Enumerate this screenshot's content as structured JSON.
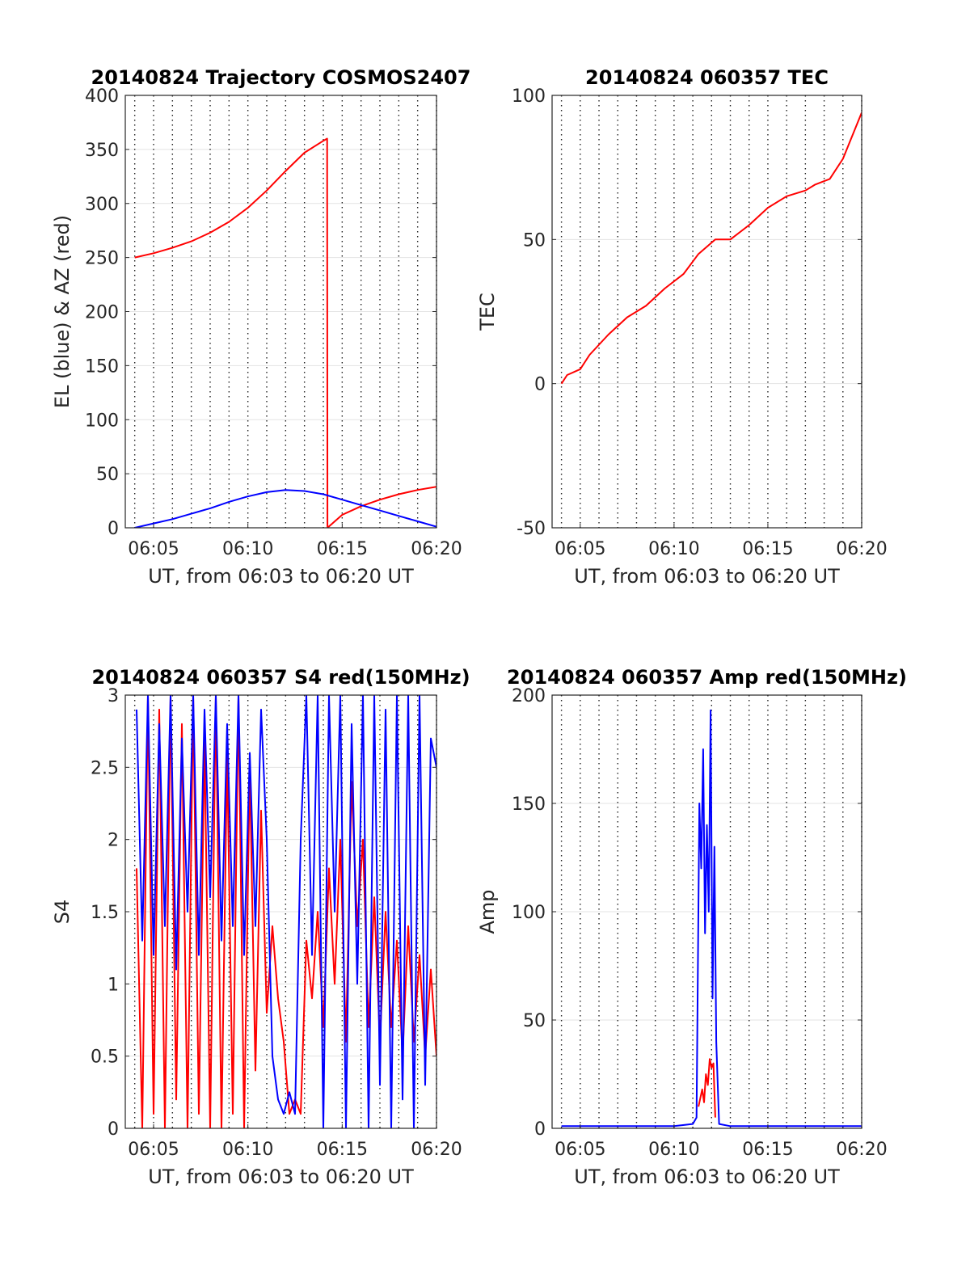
{
  "chart_data": [
    {
      "type": "line",
      "title": "20140824 Trajectory COSMOS2407",
      "xlabel": "UT, from 06:03 to 06:20 UT",
      "ylabel": "EL (blue) & AZ (red)",
      "xlim_minutes": [
        363.5,
        380
      ],
      "ylim": [
        0,
        400
      ],
      "x_ticks": [
        {
          "value": 365,
          "label": "06:05"
        },
        {
          "value": 370,
          "label": "06:10"
        },
        {
          "value": 375,
          "label": "06:15"
        },
        {
          "value": 380,
          "label": "06:20"
        }
      ],
      "y_ticks": [
        0,
        50,
        100,
        150,
        200,
        250,
        300,
        350,
        400
      ],
      "grid": "dotted vertical every minute, light horizontal",
      "series": [
        {
          "color": "#ff0000",
          "x": [
            364.0,
            365,
            366,
            367,
            368,
            369,
            370,
            371,
            372,
            373,
            374,
            374.2,
            374.22,
            375,
            376,
            377,
            378,
            379,
            380
          ],
          "values": [
            250,
            254,
            259,
            265,
            273,
            283,
            296,
            312,
            330,
            347,
            358,
            360,
            0,
            12,
            20,
            26,
            31,
            35,
            38
          ]
        },
        {
          "color": "#0000ff",
          "x": [
            364.0,
            365,
            366,
            367,
            368,
            369,
            370,
            371,
            372,
            373,
            374,
            375,
            376,
            377,
            378,
            379,
            380
          ],
          "values": [
            0,
            4,
            8,
            13,
            18,
            24,
            29,
            33,
            35,
            34,
            31,
            26,
            21,
            16,
            11,
            6,
            1
          ]
        }
      ]
    },
    {
      "type": "line",
      "title": "20140824 060357 TEC",
      "xlabel": "UT, from 06:03 to 06:20 UT",
      "ylabel": "TEC",
      "xlim_minutes": [
        363.5,
        380
      ],
      "ylim": [
        -50,
        100
      ],
      "x_ticks": [
        {
          "value": 365,
          "label": "06:05"
        },
        {
          "value": 370,
          "label": "06:10"
        },
        {
          "value": 375,
          "label": "06:15"
        },
        {
          "value": 380,
          "label": "06:20"
        }
      ],
      "y_ticks": [
        -50,
        0,
        50,
        100
      ],
      "grid": "dotted vertical every minute, light horizontal",
      "series": [
        {
          "color": "#ff0000",
          "x": [
            364.0,
            364.3,
            365.0,
            365.5,
            366.5,
            367.5,
            368.5,
            369.5,
            370.5,
            371.3,
            372.2,
            373.0,
            374.0,
            375.0,
            376.0,
            377.0,
            377.5,
            378.3,
            379.0,
            380.0
          ],
          "values": [
            0,
            3,
            5,
            10,
            17,
            23,
            27,
            33,
            38,
            45,
            50,
            50,
            55,
            61,
            65,
            67,
            69,
            71,
            78,
            94
          ]
        }
      ]
    },
    {
      "type": "line",
      "title": "20140824 060357 S4 red(150MHz)",
      "xlabel": "UT, from 06:03 to 06:20 UT",
      "ylabel": "S4",
      "xlim_minutes": [
        363.5,
        380
      ],
      "ylim": [
        0,
        3
      ],
      "x_ticks": [
        {
          "value": 365,
          "label": "06:05"
        },
        {
          "value": 370,
          "label": "06:10"
        },
        {
          "value": 375,
          "label": "06:15"
        },
        {
          "value": 380,
          "label": "06:20"
        }
      ],
      "y_ticks": [
        0,
        0.5,
        1,
        1.5,
        2,
        2.5,
        3
      ],
      "grid": "dotted vertical every minute, light horizontal",
      "series": [
        {
          "color": "#ff0000",
          "x": [
            364.1,
            364.4,
            364.7,
            365.0,
            365.3,
            365.6,
            365.9,
            366.2,
            366.5,
            366.8,
            367.1,
            367.4,
            367.7,
            368.0,
            368.3,
            368.6,
            368.9,
            369.2,
            369.5,
            369.8,
            370.1,
            370.4,
            370.7,
            371.0,
            371.3,
            371.6,
            371.9,
            372.2,
            372.5,
            372.8,
            373.1,
            373.4,
            373.7,
            374.0,
            374.3,
            374.6,
            374.9,
            375.2,
            375.5,
            375.8,
            376.1,
            376.4,
            376.7,
            377.0,
            377.3,
            377.6,
            377.9,
            378.2,
            378.5,
            378.8,
            379.1,
            379.4,
            379.7,
            380.0
          ],
          "values": [
            1.8,
            0.0,
            3.0,
            0.1,
            2.9,
            0.0,
            3.0,
            0.2,
            2.8,
            0.0,
            3.0,
            0.1,
            2.7,
            0.0,
            3.0,
            0.0,
            2.6,
            0.1,
            3.0,
            0.0,
            2.5,
            0.4,
            2.2,
            0.8,
            1.4,
            0.9,
            0.6,
            0.1,
            0.2,
            0.1,
            1.3,
            0.9,
            1.5,
            0.7,
            1.8,
            1.0,
            2.0,
            0.6,
            2.4,
            1.4,
            2.0,
            0.7,
            1.6,
            0.6,
            1.5,
            0.7,
            1.3,
            0.5,
            1.4,
            0.6,
            1.2,
            0.5,
            1.1,
            0.5
          ]
        },
        {
          "color": "#0000ff",
          "x": [
            364.1,
            364.4,
            364.7,
            365.0,
            365.3,
            365.6,
            365.9,
            366.2,
            366.5,
            366.8,
            367.1,
            367.4,
            367.7,
            368.0,
            368.3,
            368.6,
            368.9,
            369.2,
            369.5,
            369.8,
            370.1,
            370.4,
            370.7,
            371.0,
            371.3,
            371.6,
            371.9,
            372.2,
            372.5,
            372.8,
            373.1,
            373.4,
            373.7,
            374.0,
            374.3,
            374.6,
            374.9,
            375.2,
            375.5,
            375.8,
            376.1,
            376.4,
            376.7,
            377.0,
            377.3,
            377.6,
            377.9,
            378.2,
            378.5,
            378.8,
            379.1,
            379.4,
            379.7,
            380.0
          ],
          "values": [
            2.9,
            1.3,
            3.0,
            1.2,
            2.8,
            1.4,
            3.0,
            1.1,
            2.7,
            1.5,
            3.0,
            1.2,
            2.9,
            1.6,
            3.0,
            1.3,
            2.8,
            1.4,
            3.0,
            1.2,
            2.6,
            1.4,
            2.9,
            2.0,
            0.5,
            0.2,
            0.1,
            0.25,
            0.1,
            2.0,
            3.0,
            1.2,
            3.0,
            0.0,
            3.0,
            1.5,
            3.0,
            0.0,
            2.8,
            1.0,
            3.0,
            0.0,
            3.0,
            0.3,
            2.9,
            0.0,
            3.0,
            0.2,
            3.0,
            0.0,
            3.0,
            0.3,
            2.7,
            2.5
          ]
        }
      ]
    },
    {
      "type": "line",
      "title": "20140824 060357 Amp red(150MHz)",
      "xlabel": "UT, from 06:03 to 06:20 UT",
      "ylabel": "Amp",
      "xlim_minutes": [
        363.5,
        380
      ],
      "ylim": [
        0,
        200
      ],
      "x_ticks": [
        {
          "value": 365,
          "label": "06:05"
        },
        {
          "value": 370,
          "label": "06:10"
        },
        {
          "value": 375,
          "label": "06:15"
        },
        {
          "value": 380,
          "label": "06:20"
        }
      ],
      "y_ticks": [
        0,
        50,
        100,
        150,
        200
      ],
      "grid": "dotted vertical every minute, light horizontal",
      "series": [
        {
          "color": "#ff0000",
          "x": [
            371.3,
            371.5,
            371.6,
            371.7,
            371.8,
            371.9,
            372.0,
            372.1,
            372.2
          ],
          "values": [
            10,
            18,
            12,
            25,
            20,
            32,
            28,
            30,
            5
          ]
        },
        {
          "color": "#0000ff",
          "x": [
            364.0,
            365.0,
            366.0,
            367.0,
            368.0,
            369.0,
            370.0,
            371.0,
            371.2,
            371.35,
            371.45,
            371.55,
            371.65,
            371.75,
            371.85,
            371.95,
            372.05,
            372.15,
            372.25,
            372.4,
            373.0,
            374.0,
            375.0,
            376.0,
            377.0,
            378.0,
            379.0,
            380.0
          ],
          "values": [
            1,
            1,
            1,
            1,
            1,
            1,
            1,
            2,
            5,
            150,
            120,
            175,
            90,
            140,
            100,
            193,
            60,
            130,
            40,
            2,
            1,
            1,
            1,
            1,
            1,
            1,
            1,
            1
          ]
        }
      ]
    }
  ]
}
